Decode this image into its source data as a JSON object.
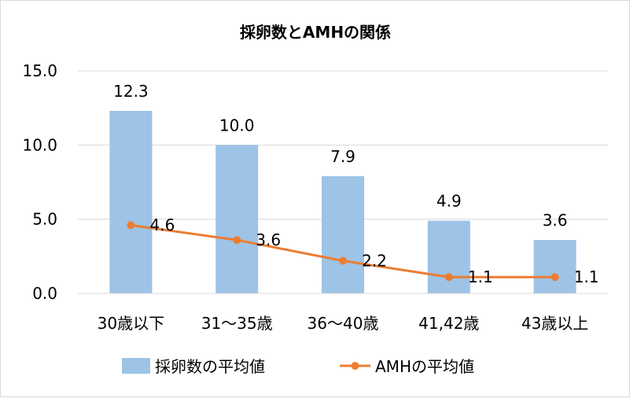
{
  "chart_data": {
    "type": "bar",
    "title": "採卵数とAMHの関係",
    "categories": [
      "30歳以下",
      "31〜35歳",
      "36〜40歳",
      "41,42歳",
      "43歳以上"
    ],
    "series": [
      {
        "name": "採卵数の平均値",
        "type": "bar",
        "values": [
          12.3,
          10.0,
          7.9,
          4.9,
          3.6
        ],
        "color": "#9dc3e6"
      },
      {
        "name": "AMHの平均値",
        "type": "line",
        "values": [
          4.6,
          3.6,
          2.2,
          1.1,
          1.1
        ],
        "color": "#ed7d31"
      }
    ],
    "y_ticks": [
      "0.0",
      "5.0",
      "10.0",
      "15.0"
    ],
    "ylim": [
      0,
      15
    ],
    "grid": true,
    "legend_position": "bottom",
    "data_labels": {
      "bar": [
        "12.3",
        "10.0",
        "7.9",
        "4.9",
        "3.6"
      ],
      "line": [
        "4.6",
        "3.6",
        "2.2",
        "1.1",
        "1.1"
      ]
    }
  }
}
